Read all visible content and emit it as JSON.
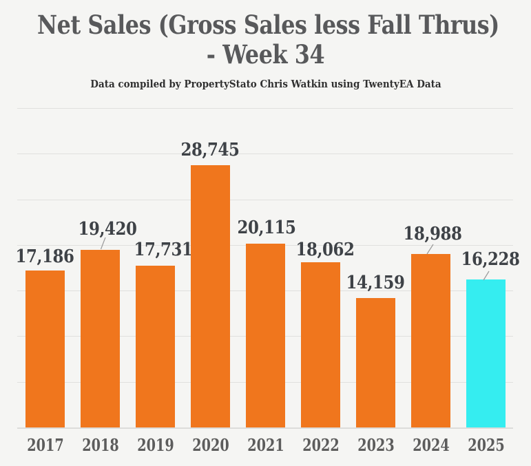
{
  "title": {
    "line1": "Net Sales (Gross Sales less Fall Thrus)",
    "line2": "- Week 34"
  },
  "subtitle": "Data compiled by PropertyStato Chris Watkin using TwentyEA Data",
  "chart_data": {
    "type": "bar",
    "title": "Net Sales (Gross Sales less Fall Thrus) - Week 34",
    "subtitle": "Data compiled by PropertyStato Chris Watkin using TwentyEA Data",
    "categories": [
      "2017",
      "2018",
      "2019",
      "2020",
      "2021",
      "2022",
      "2023",
      "2024",
      "2025"
    ],
    "values": [
      17186,
      19420,
      17731,
      28745,
      20115,
      18062,
      14159,
      18988,
      16228
    ],
    "value_labels": [
      "17,186",
      "19,420",
      "17,731",
      "28,745",
      "20,115",
      "18,062",
      "14,159",
      "18,988",
      "16,228"
    ],
    "xlabel": "",
    "ylabel": "",
    "ylim": [
      0,
      35000
    ],
    "gridline_step": 5000,
    "grid": "horizontal-only",
    "legend": "none",
    "axis_tick_labels_y": "none"
  },
  "colors": {
    "background": "#F5F5F3",
    "bar_default": "#F0761D",
    "bar_highlight": "#35EDF0",
    "highlight_index": 8,
    "title_text": "#58595B",
    "subtitle_text": "#303030",
    "value_text": "#3E4247",
    "year_text": "#5C5C5C",
    "gridline": "#E0E0DE",
    "leader_line": "#999999"
  }
}
